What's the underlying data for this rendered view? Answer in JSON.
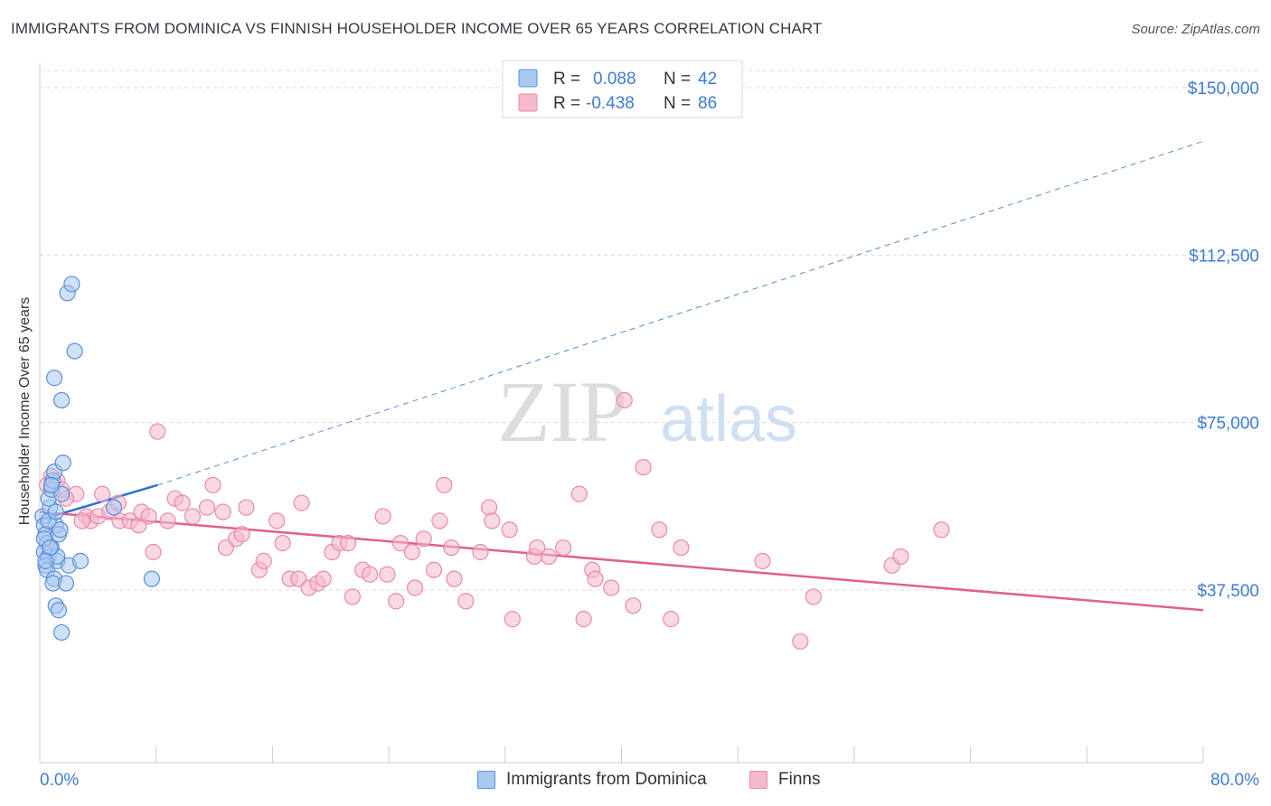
{
  "header": {
    "title": "IMMIGRANTS FROM DOMINICA VS FINNISH HOUSEHOLDER INCOME OVER 65 YEARS CORRELATION CHART",
    "source": "Source: ZipAtlas.com"
  },
  "watermark": {
    "zip": "ZIP",
    "atlas": "atlas"
  },
  "legend": {
    "rows": [
      {
        "r_label": "R =",
        "r_value": "0.088",
        "n_label": "N =",
        "n_value": "42"
      },
      {
        "r_label": "R =",
        "r_value": "-0.438",
        "n_label": "N =",
        "n_value": "86"
      }
    ]
  },
  "bottom_legend": {
    "series1": "Immigrants from Dominica",
    "series2": "Finns"
  },
  "colors": {
    "blue_fill": "#a8c8f0",
    "blue_stroke": "#5b8fd9",
    "blue_line": "#2f6fd0",
    "pink_fill": "#f5b8cc",
    "pink_stroke": "#e88aa8",
    "pink_line": "#e0608e",
    "tick": "#3e7bd6",
    "grid": "#d9d9d9"
  },
  "chart_data": {
    "type": "scatter",
    "title": "IMMIGRANTS FROM DOMINICA VS FINNISH HOUSEHOLDER INCOME OVER 65 YEARS CORRELATION CHART",
    "xlabel": "",
    "ylabel": "Householder Income Over 65 years",
    "xlim": [
      0,
      80
    ],
    "ylim": [
      0,
      160000
    ],
    "x_tick_labels": [
      "0.0%",
      "80.0%"
    ],
    "y_ticks": [
      37500,
      75000,
      112500,
      150000
    ],
    "y_tick_labels": [
      "$37,500",
      "$75,000",
      "$112,500",
      "$150,000"
    ],
    "grid": true,
    "series": [
      {
        "name": "Immigrants from Dominica",
        "points": [
          [
            0.2,
            54000
          ],
          [
            0.3,
            52000
          ],
          [
            0.4,
            50000
          ],
          [
            0.5,
            48000
          ],
          [
            0.3,
            46000
          ],
          [
            0.6,
            45000
          ],
          [
            0.4,
            43000
          ],
          [
            0.5,
            42000
          ],
          [
            0.7,
            56000
          ],
          [
            0.6,
            58000
          ],
          [
            0.8,
            60000
          ],
          [
            0.9,
            62000
          ],
          [
            1.0,
            64000
          ],
          [
            1.1,
            52000
          ],
          [
            0.8,
            47000
          ],
          [
            1.2,
            44000
          ],
          [
            1.0,
            40000
          ],
          [
            0.9,
            39000
          ],
          [
            1.3,
            50000
          ],
          [
            1.5,
            59000
          ],
          [
            1.6,
            66000
          ],
          [
            1.4,
            51000
          ],
          [
            1.2,
            45000
          ],
          [
            1.8,
            39000
          ],
          [
            2.0,
            43000
          ],
          [
            2.8,
            44000
          ],
          [
            1.1,
            34000
          ],
          [
            1.3,
            33000
          ],
          [
            1.5,
            28000
          ],
          [
            1.0,
            85000
          ],
          [
            1.5,
            80000
          ],
          [
            2.4,
            91000
          ],
          [
            1.9,
            104000
          ],
          [
            2.2,
            106000
          ],
          [
            5.1,
            56000
          ],
          [
            7.7,
            40000
          ],
          [
            0.3,
            49000
          ],
          [
            0.6,
            53000
          ],
          [
            0.7,
            47000
          ],
          [
            1.1,
            55000
          ],
          [
            0.4,
            44000
          ],
          [
            0.8,
            61000
          ]
        ]
      },
      {
        "name": "Finns",
        "points": [
          [
            0.5,
            61000
          ],
          [
            0.8,
            63000
          ],
          [
            1.2,
            62000
          ],
          [
            1.5,
            60000
          ],
          [
            2.5,
            59000
          ],
          [
            3.2,
            54000
          ],
          [
            3.5,
            53000
          ],
          [
            4.0,
            54000
          ],
          [
            4.3,
            59000
          ],
          [
            4.8,
            55000
          ],
          [
            5.5,
            53000
          ],
          [
            5.4,
            57000
          ],
          [
            6.2,
            53000
          ],
          [
            6.8,
            52000
          ],
          [
            7.0,
            55000
          ],
          [
            7.5,
            54000
          ],
          [
            7.8,
            46000
          ],
          [
            8.1,
            73000
          ],
          [
            8.8,
            53000
          ],
          [
            9.3,
            58000
          ],
          [
            9.8,
            57000
          ],
          [
            10.5,
            54000
          ],
          [
            11.5,
            56000
          ],
          [
            11.9,
            61000
          ],
          [
            12.6,
            55000
          ],
          [
            12.8,
            47000
          ],
          [
            13.5,
            49000
          ],
          [
            14.2,
            56000
          ],
          [
            13.9,
            50000
          ],
          [
            15.1,
            42000
          ],
          [
            15.4,
            44000
          ],
          [
            16.3,
            53000
          ],
          [
            16.7,
            48000
          ],
          [
            17.2,
            40000
          ],
          [
            17.8,
            40000
          ],
          [
            18.0,
            57000
          ],
          [
            18.5,
            38000
          ],
          [
            19.1,
            39000
          ],
          [
            19.5,
            40000
          ],
          [
            20.1,
            46000
          ],
          [
            20.6,
            48000
          ],
          [
            21.2,
            48000
          ],
          [
            21.5,
            36000
          ],
          [
            22.2,
            42000
          ],
          [
            22.7,
            41000
          ],
          [
            23.6,
            54000
          ],
          [
            23.9,
            41000
          ],
          [
            24.5,
            35000
          ],
          [
            24.8,
            48000
          ],
          [
            25.6,
            46000
          ],
          [
            25.8,
            38000
          ],
          [
            26.4,
            49000
          ],
          [
            27.1,
            42000
          ],
          [
            27.5,
            53000
          ],
          [
            27.8,
            61000
          ],
          [
            28.3,
            47000
          ],
          [
            28.5,
            40000
          ],
          [
            29.3,
            35000
          ],
          [
            30.3,
            46000
          ],
          [
            30.9,
            56000
          ],
          [
            31.1,
            53000
          ],
          [
            32.3,
            51000
          ],
          [
            32.5,
            31000
          ],
          [
            34.0,
            45000
          ],
          [
            34.2,
            47000
          ],
          [
            35.0,
            45000
          ],
          [
            36.0,
            47000
          ],
          [
            37.1,
            59000
          ],
          [
            37.4,
            31000
          ],
          [
            38.0,
            42000
          ],
          [
            38.2,
            40000
          ],
          [
            39.3,
            38000
          ],
          [
            40.2,
            80000
          ],
          [
            40.8,
            34000
          ],
          [
            41.5,
            65000
          ],
          [
            42.6,
            51000
          ],
          [
            43.4,
            31000
          ],
          [
            44.1,
            47000
          ],
          [
            49.7,
            44000
          ],
          [
            52.3,
            26000
          ],
          [
            53.2,
            36000
          ],
          [
            58.6,
            43000
          ],
          [
            59.2,
            45000
          ],
          [
            62.0,
            51000
          ],
          [
            1.8,
            58000
          ],
          [
            2.9,
            53000
          ]
        ]
      }
    ],
    "trendlines": [
      {
        "series": "Immigrants from Dominica",
        "x": [
          0,
          8.1
        ],
        "y": [
          53200,
          61000
        ],
        "extrapolated_x": [
          8.1,
          80
        ],
        "extrapolated_y": [
          61000,
          138000
        ]
      },
      {
        "series": "Finns",
        "x": [
          0,
          80
        ],
        "y": [
          55000,
          33000
        ]
      }
    ]
  }
}
